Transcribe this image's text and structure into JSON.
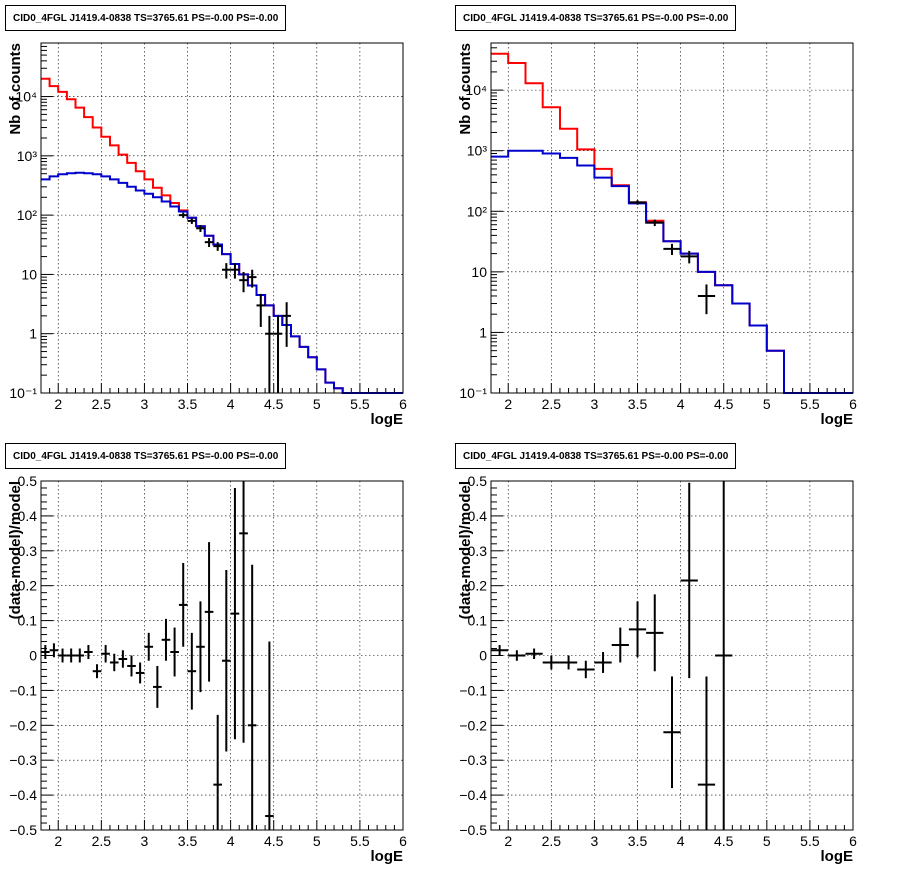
{
  "chart_data": [
    {
      "type": "line",
      "title": "CID0_4FGL J1419.4-0838 TS=3765.61 PS=-0.00 PS=-0.00",
      "xlabel": "logE",
      "ylabel": "Nb of counts",
      "ylog": true,
      "xlim": [
        1.8,
        6.0
      ],
      "ylim": [
        0.1,
        80000
      ],
      "grid": true,
      "xticks": [
        2,
        2.5,
        3,
        3.5,
        4,
        4.5,
        5,
        5.5,
        6
      ],
      "xtick_labels": [
        "2",
        "2.5",
        "3",
        "3.5",
        "4",
        "4.5",
        "5",
        "5.5",
        "6"
      ],
      "yticks": [
        0.1,
        1,
        10,
        100,
        1000,
        10000
      ],
      "ytick_labels": [
        "10⁻¹",
        "1",
        "10",
        "10²",
        "10³",
        "10⁴"
      ],
      "bin_edges": [
        1.8,
        1.9,
        2.0,
        2.1,
        2.2,
        2.3,
        2.4,
        2.5,
        2.6,
        2.7,
        2.8,
        2.9,
        3.0,
        3.1,
        3.2,
        3.3,
        3.4,
        3.5,
        3.6,
        3.7,
        3.8,
        3.9,
        4.0,
        4.1,
        4.2,
        4.3,
        4.4,
        4.5,
        4.6,
        4.7,
        4.8,
        4.9,
        5.0,
        5.1,
        5.2,
        5.3,
        5.4,
        5.5,
        5.6,
        5.7,
        5.8,
        5.9,
        6.0
      ],
      "series": [
        {
          "color": "#ff0000",
          "values": [
            20000,
            15000,
            12000,
            9000,
            6500,
            4500,
            3000,
            2100,
            1500,
            1050,
            760,
            550,
            400,
            290,
            215,
            160,
            120,
            90,
            65,
            45,
            32,
            22,
            15,
            10,
            6.5,
            4.5,
            3.0,
            2.0,
            1.4,
            0.9,
            0.6,
            0.4,
            0.25,
            0.15,
            0.12,
            0.1,
            0.1,
            0.1,
            0.1,
            0.1,
            0.1,
            0.1
          ]
        },
        {
          "color": "#0000cc",
          "values": [
            400,
            450,
            490,
            510,
            520,
            510,
            490,
            450,
            400,
            350,
            300,
            260,
            230,
            200,
            170,
            140,
            115,
            90,
            65,
            45,
            32,
            22,
            15,
            10,
            6.5,
            4.5,
            3.0,
            2.0,
            1.4,
            0.9,
            0.6,
            0.4,
            0.25,
            0.15,
            0.12,
            0.1,
            0.1,
            0.1,
            0.1,
            0.1,
            0.1,
            0.1
          ]
        }
      ],
      "points": [
        {
          "x": 3.45,
          "y": 100,
          "xerr": 0.05,
          "yerr": [
            10,
            10
          ]
        },
        {
          "x": 3.55,
          "y": 80,
          "xerr": 0.05,
          "yerr": [
            9,
            9
          ]
        },
        {
          "x": 3.65,
          "y": 60,
          "xerr": 0.05,
          "yerr": [
            8,
            8
          ]
        },
        {
          "x": 3.75,
          "y": 35,
          "xerr": 0.05,
          "yerr": [
            6,
            6
          ]
        },
        {
          "x": 3.85,
          "y": 30,
          "xerr": 0.05,
          "yerr": [
            5,
            5
          ]
        },
        {
          "x": 3.95,
          "y": 12,
          "xerr": 0.05,
          "yerr": [
            3.5,
            3.5
          ]
        },
        {
          "x": 4.05,
          "y": 12,
          "xerr": 0.05,
          "yerr": [
            3.5,
            3.5
          ]
        },
        {
          "x": 4.15,
          "y": 8,
          "xerr": 0.05,
          "yerr": [
            3,
            3
          ]
        },
        {
          "x": 4.25,
          "y": 9,
          "xerr": 0.05,
          "yerr": [
            3,
            3
          ]
        },
        {
          "x": 4.35,
          "y": 3,
          "xerr": 0.05,
          "yerr": [
            1.7,
            1.7
          ]
        },
        {
          "x": 4.45,
          "y": 1,
          "xerr": 0.05,
          "yerr": [
            0.95,
            1.0
          ]
        },
        {
          "x": 4.55,
          "y": 1,
          "xerr": 0.05,
          "yerr": [
            0.95,
            1.0
          ]
        },
        {
          "x": 4.65,
          "y": 2,
          "xerr": 0.05,
          "yerr": [
            1.4,
            1.4
          ]
        }
      ]
    },
    {
      "type": "line",
      "title": "CID0_4FGL J1419.4-0838 TS=3765.61 PS=-0.00 PS=-0.00",
      "xlabel": "logE",
      "ylabel": "Nb of counts",
      "ylog": true,
      "xlim": [
        1.8,
        6.0
      ],
      "ylim": [
        0.1,
        60000
      ],
      "grid": true,
      "xticks": [
        2,
        2.5,
        3,
        3.5,
        4,
        4.5,
        5,
        5.5,
        6
      ],
      "xtick_labels": [
        "2",
        "2.5",
        "3",
        "3.5",
        "4",
        "4.5",
        "5",
        "5.5",
        "6"
      ],
      "yticks": [
        0.1,
        1,
        10,
        100,
        1000,
        10000
      ],
      "ytick_labels": [
        "10⁻¹",
        "1",
        "10",
        "10²",
        "10³",
        "10⁴"
      ],
      "bin_edges": [
        1.8,
        2.0,
        2.2,
        2.4,
        2.6,
        2.8,
        3.0,
        3.2,
        3.4,
        3.6,
        3.8,
        4.0,
        4.2,
        4.4,
        4.6,
        4.8,
        5.0,
        5.2,
        5.4,
        5.6,
        5.8,
        6.0
      ],
      "series": [
        {
          "color": "#ff0000",
          "values": [
            40000,
            28000,
            13000,
            5200,
            2300,
            1050,
            500,
            270,
            140,
            70,
            32,
            20,
            10,
            6,
            3,
            1.3,
            0.5,
            0.1,
            0.1,
            0.1,
            0.1
          ]
        },
        {
          "color": "#0000cc",
          "values": [
            800,
            1000,
            1000,
            900,
            760,
            570,
            360,
            260,
            135,
            65,
            32,
            20,
            10,
            6,
            3,
            1.3,
            0.5,
            0.1,
            0.1,
            0.1,
            0.1
          ]
        }
      ],
      "points": [
        {
          "x": 3.5,
          "y": 140,
          "xerr": 0.1,
          "yerr": [
            12,
            12
          ]
        },
        {
          "x": 3.7,
          "y": 65,
          "xerr": 0.1,
          "yerr": [
            8,
            8
          ]
        },
        {
          "x": 3.9,
          "y": 24,
          "xerr": 0.1,
          "yerr": [
            5,
            5
          ]
        },
        {
          "x": 4.1,
          "y": 18,
          "xerr": 0.1,
          "yerr": [
            4.2,
            4.2
          ]
        },
        {
          "x": 4.3,
          "y": 4,
          "xerr": 0.1,
          "yerr": [
            2,
            2.2
          ]
        }
      ]
    },
    {
      "type": "scatter",
      "title": "CID0_4FGL J1419.4-0838 TS=3765.61 PS=-0.00 PS=-0.00",
      "xlabel": "logE",
      "ylabel": "(data-model)/model",
      "ylog": false,
      "xlim": [
        1.8,
        6.0
      ],
      "ylim": [
        -0.5,
        0.5
      ],
      "grid": true,
      "xticks": [
        2,
        2.5,
        3,
        3.5,
        4,
        4.5,
        5,
        5.5,
        6
      ],
      "xtick_labels": [
        "2",
        "2.5",
        "3",
        "3.5",
        "4",
        "4.5",
        "5",
        "5.5",
        "6"
      ],
      "yticks": [
        -0.5,
        -0.4,
        -0.3,
        -0.2,
        -0.1,
        0,
        0.1,
        0.2,
        0.3,
        0.4,
        0.5
      ],
      "ytick_labels": [
        "−0.5",
        "−0.4",
        "−0.3",
        "−0.2",
        "−0.1",
        "0",
        "0.1",
        "0.2",
        "0.3",
        "0.4",
        "0.5"
      ],
      "points": [
        {
          "x": 1.85,
          "y": 0.01,
          "xerr": 0.05,
          "yerr": [
            0.02,
            0.02
          ]
        },
        {
          "x": 1.95,
          "y": 0.015,
          "xerr": 0.05,
          "yerr": [
            0.02,
            0.02
          ]
        },
        {
          "x": 2.05,
          "y": 0.0,
          "xerr": 0.05,
          "yerr": [
            0.02,
            0.02
          ]
        },
        {
          "x": 2.15,
          "y": 0.0,
          "xerr": 0.05,
          "yerr": [
            0.02,
            0.02
          ]
        },
        {
          "x": 2.25,
          "y": 0.0,
          "xerr": 0.05,
          "yerr": [
            0.02,
            0.02
          ]
        },
        {
          "x": 2.35,
          "y": 0.01,
          "xerr": 0.05,
          "yerr": [
            0.02,
            0.02
          ]
        },
        {
          "x": 2.45,
          "y": -0.045,
          "xerr": 0.05,
          "yerr": [
            0.02,
            0.02
          ]
        },
        {
          "x": 2.55,
          "y": 0.005,
          "xerr": 0.05,
          "yerr": [
            0.025,
            0.025
          ]
        },
        {
          "x": 2.65,
          "y": -0.02,
          "xerr": 0.05,
          "yerr": [
            0.025,
            0.025
          ]
        },
        {
          "x": 2.75,
          "y": -0.01,
          "xerr": 0.05,
          "yerr": [
            0.025,
            0.025
          ]
        },
        {
          "x": 2.85,
          "y": -0.03,
          "xerr": 0.05,
          "yerr": [
            0.03,
            0.03
          ]
        },
        {
          "x": 2.95,
          "y": -0.05,
          "xerr": 0.05,
          "yerr": [
            0.03,
            0.03
          ]
        },
        {
          "x": 3.05,
          "y": 0.025,
          "xerr": 0.05,
          "yerr": [
            0.04,
            0.04
          ]
        },
        {
          "x": 3.15,
          "y": -0.09,
          "xerr": 0.05,
          "yerr": [
            0.06,
            0.06
          ]
        },
        {
          "x": 3.25,
          "y": 0.045,
          "xerr": 0.05,
          "yerr": [
            0.06,
            0.06
          ]
        },
        {
          "x": 3.35,
          "y": 0.01,
          "xerr": 0.05,
          "yerr": [
            0.07,
            0.07
          ]
        },
        {
          "x": 3.45,
          "y": 0.145,
          "xerr": 0.05,
          "yerr": [
            0.12,
            0.12
          ]
        },
        {
          "x": 3.55,
          "y": -0.045,
          "xerr": 0.05,
          "yerr": [
            0.11,
            0.11
          ]
        },
        {
          "x": 3.65,
          "y": 0.025,
          "xerr": 0.05,
          "yerr": [
            0.13,
            0.13
          ]
        },
        {
          "x": 3.75,
          "y": 0.125,
          "xerr": 0.05,
          "yerr": [
            0.2,
            0.2
          ]
        },
        {
          "x": 3.85,
          "y": -0.37,
          "xerr": 0.05,
          "yerr": [
            0.2,
            0.2
          ]
        },
        {
          "x": 3.95,
          "y": -0.015,
          "xerr": 0.05,
          "yerr": [
            0.26,
            0.26
          ]
        },
        {
          "x": 4.05,
          "y": 0.12,
          "xerr": 0.05,
          "yerr": [
            0.36,
            0.36
          ]
        },
        {
          "x": 4.15,
          "y": 0.35,
          "xerr": 0.05,
          "yerr": [
            0.6,
            0.6
          ]
        },
        {
          "x": 4.25,
          "y": -0.2,
          "xerr": 0.05,
          "yerr": [
            0.46,
            0.46
          ]
        },
        {
          "x": 4.45,
          "y": -0.46,
          "xerr": 0.05,
          "yerr": [
            0.5,
            0.5
          ]
        }
      ]
    },
    {
      "type": "scatter",
      "title": "CID0_4FGL J1419.4-0838 TS=3765.61 PS=-0.00 PS=-0.00",
      "xlabel": "logE",
      "ylabel": "(data-model)/model",
      "ylog": false,
      "xlim": [
        1.8,
        6.0
      ],
      "ylim": [
        -0.5,
        0.5
      ],
      "grid": true,
      "xticks": [
        2,
        2.5,
        3,
        3.5,
        4,
        4.5,
        5,
        5.5,
        6
      ],
      "xtick_labels": [
        "2",
        "2.5",
        "3",
        "3.5",
        "4",
        "4.5",
        "5",
        "5.5",
        "6"
      ],
      "yticks": [
        -0.5,
        -0.4,
        -0.3,
        -0.2,
        -0.1,
        0,
        0.1,
        0.2,
        0.3,
        0.4,
        0.5
      ],
      "ytick_labels": [
        "−0.5",
        "−0.4",
        "−0.3",
        "−0.2",
        "−0.1",
        "0",
        "0.1",
        "0.2",
        "0.3",
        "0.4",
        "0.5"
      ],
      "points": [
        {
          "x": 1.9,
          "y": 0.015,
          "xerr": 0.1,
          "yerr": [
            0.015,
            0.015
          ]
        },
        {
          "x": 2.1,
          "y": 0.0,
          "xerr": 0.1,
          "yerr": [
            0.015,
            0.015
          ]
        },
        {
          "x": 2.3,
          "y": 0.005,
          "xerr": 0.1,
          "yerr": [
            0.015,
            0.015
          ]
        },
        {
          "x": 2.5,
          "y": -0.02,
          "xerr": 0.1,
          "yerr": [
            0.02,
            0.02
          ]
        },
        {
          "x": 2.7,
          "y": -0.02,
          "xerr": 0.1,
          "yerr": [
            0.02,
            0.02
          ]
        },
        {
          "x": 2.9,
          "y": -0.04,
          "xerr": 0.1,
          "yerr": [
            0.025,
            0.025
          ]
        },
        {
          "x": 3.1,
          "y": -0.02,
          "xerr": 0.1,
          "yerr": [
            0.03,
            0.03
          ]
        },
        {
          "x": 3.3,
          "y": 0.03,
          "xerr": 0.1,
          "yerr": [
            0.05,
            0.05
          ]
        },
        {
          "x": 3.5,
          "y": 0.075,
          "xerr": 0.1,
          "yerr": [
            0.08,
            0.08
          ]
        },
        {
          "x": 3.7,
          "y": 0.065,
          "xerr": 0.1,
          "yerr": [
            0.11,
            0.11
          ]
        },
        {
          "x": 3.9,
          "y": -0.22,
          "xerr": 0.1,
          "yerr": [
            0.16,
            0.16
          ]
        },
        {
          "x": 4.1,
          "y": 0.215,
          "xerr": 0.1,
          "yerr": [
            0.28,
            0.28
          ]
        },
        {
          "x": 4.3,
          "y": -0.37,
          "xerr": 0.1,
          "yerr": [
            0.31,
            0.31
          ]
        },
        {
          "x": 4.5,
          "y": 0.0,
          "xerr": 0.1,
          "yerr": [
            0.5,
            0.5
          ]
        }
      ]
    }
  ]
}
